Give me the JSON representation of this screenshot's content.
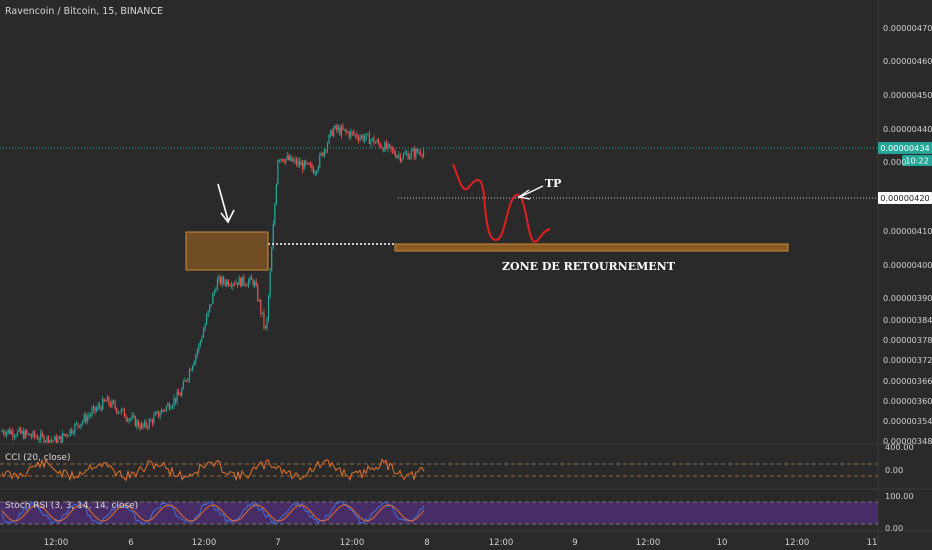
{
  "header": {
    "title": "Ravencoin / Bitcoin, 15, BINANCE"
  },
  "colors": {
    "background": "#2a2a2a",
    "up_candle": "#26a69a",
    "down_candle": "#ef5350",
    "price_line": "#26a69a",
    "cci_line": "#e0712a",
    "rsi_k": "#3f6fd8",
    "rsi_d": "#e0712a",
    "rsi_band": "#6a2fb0",
    "drawing_red": "#e02020",
    "zone_fill": "#8a5a24",
    "zone_border": "#d08a3a"
  },
  "chart_data": [
    {
      "type": "candlestick",
      "title": "Ravencoin / Bitcoin, 15, BINANCE",
      "y_axis_ticks": [
        "0.00000470",
        "0.00000460",
        "0.00000450",
        "0.00000440",
        "0.00000410",
        "0.00000400",
        "0.00000390",
        "0.00000384",
        "0.00000378",
        "0.00000372",
        "0.00000366",
        "0.00000360",
        "0.00000354",
        "0.00000348"
      ],
      "x_axis_ticks": [
        "12:00",
        "6",
        "12:00",
        "7",
        "12:00",
        "8",
        "12:00",
        "9",
        "12:00",
        "10",
        "12:00",
        "11"
      ],
      "last_price": "0.00000434",
      "countdown": "10:22",
      "horizontal_line_label": "0.00000420",
      "truncated_label": "0.000",
      "series_trend": {
        "description_points_price": [
          [
            "5 04:00",
            3.51e-06
          ],
          [
            "5 12:00",
            3.48e-06
          ],
          [
            "5 20:00",
            3.6e-06
          ],
          [
            "6 02:00",
            3.52e-06
          ],
          [
            "6 08:00",
            3.62e-06
          ],
          [
            "6 11:00",
            3.76e-06
          ],
          [
            "6 14:00",
            3.95e-06
          ],
          [
            "6 20:00",
            3.95e-06
          ],
          [
            "6 22:00",
            3.8e-06
          ],
          [
            "7 00:00",
            4.32e-06
          ],
          [
            "7 06:00",
            4.28e-06
          ],
          [
            "7 09:00",
            4.4e-06
          ],
          [
            "7 15:00",
            4.37e-06
          ],
          [
            "7 20:00",
            4.32e-06
          ],
          [
            "8 00:00",
            4.34e-06
          ]
        ]
      }
    },
    {
      "type": "line",
      "name": "CCI (20, close)",
      "y_axis_ticks": [
        "400.00",
        "0.00"
      ]
    },
    {
      "type": "line",
      "name": "Stoch RSI (3, 3, 14, 14, close)",
      "y_axis_ticks": [
        "100.00",
        "0.00"
      ]
    }
  ],
  "annotations": {
    "tp_label": "TP",
    "zone_label": "ZONE DE RETOURNEMENT"
  }
}
